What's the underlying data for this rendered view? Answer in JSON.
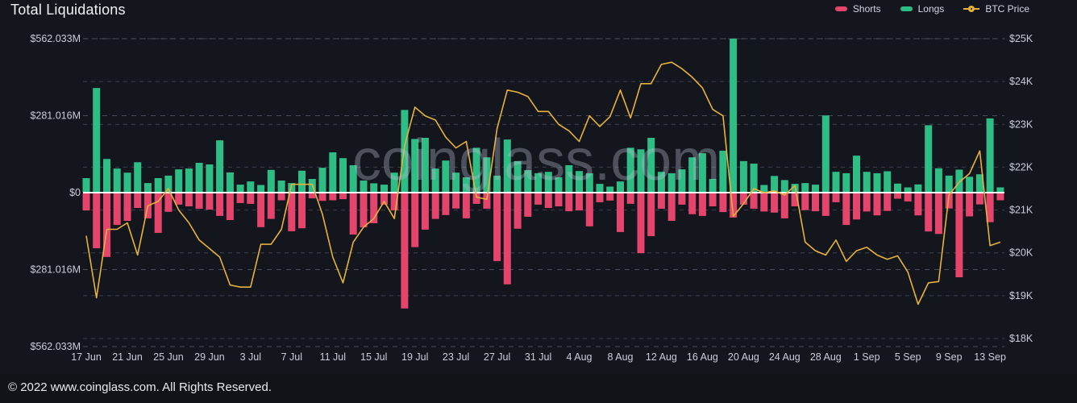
{
  "header": {
    "title": "Total Liquidations"
  },
  "legend": [
    {
      "label": "Shorts",
      "color": "#e5446d",
      "marker": "bar-swatch"
    },
    {
      "label": "Longs",
      "color": "#2ebd85",
      "marker": "bar-swatch"
    },
    {
      "label": "BTC Price",
      "color": "#e7b23c",
      "marker": "line-dot"
    }
  ],
  "watermark": {
    "text": "coinglass.com"
  },
  "footer": {
    "copyright": "© 2022 www.coinglass.com. All Rights Reserved."
  },
  "colors": {
    "background": "#14161e",
    "longs": "#2ebd85",
    "shorts": "#e5446d",
    "price_line": "#e7b23c",
    "zero_line": "#ffffff",
    "grid": "#3a404e",
    "grid_major": "#474d5c",
    "axis_text": "#c9cdd6"
  },
  "chart_data": {
    "type": "bar",
    "subtype": "mirrored-bars-with-line-overlay",
    "title": "Total Liquidations",
    "legend_position": "top-right",
    "grid": "dashed-horizontal",
    "y_axis_left": {
      "labels": [
        "$562.033M",
        "$281.016M",
        "$0",
        "$281.016M",
        "$562.033M"
      ],
      "max_millions": 562.033,
      "min_millions": -562.033
    },
    "y_axis_right": {
      "labels": [
        "$25K",
        "$24K",
        "$23K",
        "$22K",
        "$21K",
        "$20K",
        "$19K",
        "$18K"
      ],
      "max_thousands": 25,
      "min_thousands": 18
    },
    "x_tick_step": 4,
    "x_tick_labels": [
      "17 Jun",
      "21 Jun",
      "25 Jun",
      "29 Jun",
      "3 Jul",
      "7 Jul",
      "11 Jul",
      "15 Jul",
      "19 Jul",
      "23 Jul",
      "27 Jul",
      "31 Jul",
      "4 Aug",
      "8 Aug",
      "12 Aug",
      "16 Aug",
      "20 Aug",
      "24 Aug",
      "28 Aug",
      "1 Sep",
      "5 Sep",
      "9 Sep",
      "13 Sep"
    ],
    "dates": [
      "17 Jun",
      "18 Jun",
      "19 Jun",
      "20 Jun",
      "21 Jun",
      "22 Jun",
      "23 Jun",
      "24 Jun",
      "25 Jun",
      "26 Jun",
      "27 Jun",
      "28 Jun",
      "29 Jun",
      "30 Jun",
      "1 Jul",
      "2 Jul",
      "3 Jul",
      "4 Jul",
      "5 Jul",
      "6 Jul",
      "7 Jul",
      "8 Jul",
      "9 Jul",
      "10 Jul",
      "11 Jul",
      "12 Jul",
      "13 Jul",
      "14 Jul",
      "15 Jul",
      "16 Jul",
      "17 Jul",
      "18 Jul",
      "19 Jul",
      "20 Jul",
      "21 Jul",
      "22 Jul",
      "23 Jul",
      "24 Jul",
      "25 Jul",
      "26 Jul",
      "27 Jul",
      "28 Jul",
      "29 Jul",
      "30 Jul",
      "31 Jul",
      "1 Aug",
      "2 Aug",
      "3 Aug",
      "4 Aug",
      "5 Aug",
      "6 Aug",
      "7 Aug",
      "8 Aug",
      "9 Aug",
      "10 Aug",
      "11 Aug",
      "12 Aug",
      "13 Aug",
      "14 Aug",
      "15 Aug",
      "16 Aug",
      "17 Aug",
      "18 Aug",
      "19 Aug",
      "20 Aug",
      "21 Aug",
      "22 Aug",
      "23 Aug",
      "24 Aug",
      "25 Aug",
      "26 Aug",
      "27 Aug",
      "28 Aug",
      "29 Aug",
      "30 Aug",
      "31 Aug",
      "1 Sep",
      "2 Sep",
      "3 Sep",
      "4 Sep",
      "5 Sep",
      "6 Sep",
      "7 Sep",
      "8 Sep",
      "9 Sep",
      "10 Sep",
      "11 Sep",
      "12 Sep",
      "13 Sep",
      "14 Sep"
    ],
    "series": [
      {
        "name": "Longs",
        "axis": "left",
        "unit": "USD millions (liquidated longs, plotted upward)",
        "color": "#2ebd85",
        "values": [
          53,
          382,
          123,
          88,
          73,
          111,
          35,
          53,
          62,
          85,
          88,
          109,
          103,
          191,
          74,
          29,
          41,
          28,
          83,
          44,
          35,
          80,
          50,
          91,
          147,
          126,
          100,
          44,
          34,
          29,
          73,
          302,
          196,
          200,
          88,
          117,
          73,
          56,
          164,
          129,
          62,
          194,
          115,
          82,
          71,
          76,
          56,
          100,
          79,
          71,
          32,
          22,
          41,
          164,
          158,
          200,
          76,
          71,
          85,
          129,
          144,
          50,
          153,
          562,
          115,
          106,
          28,
          61,
          46,
          32,
          35,
          29,
          282,
          76,
          71,
          135,
          76,
          71,
          78,
          33,
          19,
          30,
          246,
          89,
          62,
          84,
          58,
          67,
          271,
          19
        ]
      },
      {
        "name": "Shorts",
        "axis": "left",
        "unit": "USD millions (liquidated shorts, plotted downward)",
        "color": "#e5446d",
        "values": [
          62,
          200,
          232,
          115,
          100,
          53,
          91,
          144,
          67,
          41,
          47,
          56,
          59,
          82,
          97,
          35,
          38,
          123,
          93,
          25,
          138,
          127,
          18,
          27,
          25,
          21,
          150,
          124,
          109,
          41,
          62,
          420,
          196,
          132,
          93,
          79,
          55,
          91,
          38,
          56,
          247,
          332,
          129,
          85,
          41,
          53,
          47,
          65,
          62,
          120,
          32,
          26,
          141,
          38,
          218,
          156,
          56,
          100,
          41,
          76,
          82,
          47,
          68,
          88,
          41,
          56,
          66,
          70,
          91,
          47,
          61,
          65,
          82,
          32,
          115,
          95,
          66,
          80,
          64,
          19,
          29,
          80,
          139,
          148,
          55,
          306,
          84,
          40,
          105,
          25
        ]
      },
      {
        "name": "BTC Price",
        "axis": "right",
        "unit": "USD thousands",
        "color": "#e7b23c",
        "values": [
          20.4,
          18.95,
          20.55,
          20.55,
          20.7,
          19.95,
          21.1,
          21.2,
          21.5,
          21.0,
          20.7,
          20.3,
          20.1,
          19.9,
          19.25,
          19.2,
          19.2,
          20.2,
          20.2,
          20.55,
          21.6,
          21.6,
          21.6,
          20.9,
          19.9,
          19.3,
          20.25,
          20.6,
          20.8,
          21.2,
          20.8,
          22.5,
          23.4,
          23.2,
          23.1,
          22.7,
          22.45,
          22.6,
          21.3,
          21.25,
          22.9,
          23.8,
          23.75,
          23.65,
          23.3,
          23.3,
          23.0,
          22.85,
          22.6,
          23.2,
          22.95,
          23.18,
          23.8,
          23.15,
          23.95,
          23.95,
          24.4,
          24.45,
          24.3,
          24.1,
          23.85,
          23.35,
          23.2,
          20.85,
          21.15,
          21.5,
          21.4,
          21.45,
          21.35,
          21.57,
          20.25,
          20.05,
          19.95,
          20.3,
          19.8,
          20.05,
          20.13,
          19.95,
          19.85,
          19.93,
          19.55,
          18.8,
          19.3,
          19.33,
          21.35,
          21.65,
          21.85,
          22.38,
          20.17,
          20.25
        ]
      }
    ]
  }
}
